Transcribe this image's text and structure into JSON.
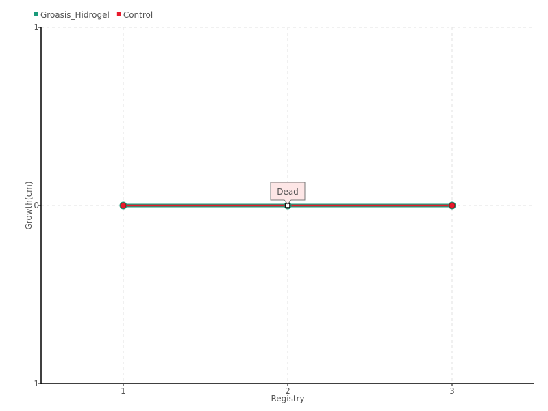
{
  "chart_data": {
    "type": "line",
    "title": "",
    "xlabel": "Registry",
    "ylabel": "Growth(cm)",
    "x": [
      1,
      2,
      3
    ],
    "xlim": [
      0.5,
      3.5
    ],
    "ylim": [
      -1,
      1
    ],
    "xticks": [
      1,
      2,
      3
    ],
    "yticks": [
      -1,
      0,
      1
    ],
    "grid": true,
    "legend_placement": "top-left",
    "series": [
      {
        "name": "Groasis_Hidrogel",
        "values": [
          0,
          0,
          0
        ],
        "color": "#1a9a7a"
      },
      {
        "name": "Control",
        "values": [
          0,
          0,
          0
        ],
        "color": "#e8192c"
      }
    ],
    "annotations": [
      {
        "x": 2,
        "y": 0,
        "text": "Dead"
      }
    ]
  }
}
